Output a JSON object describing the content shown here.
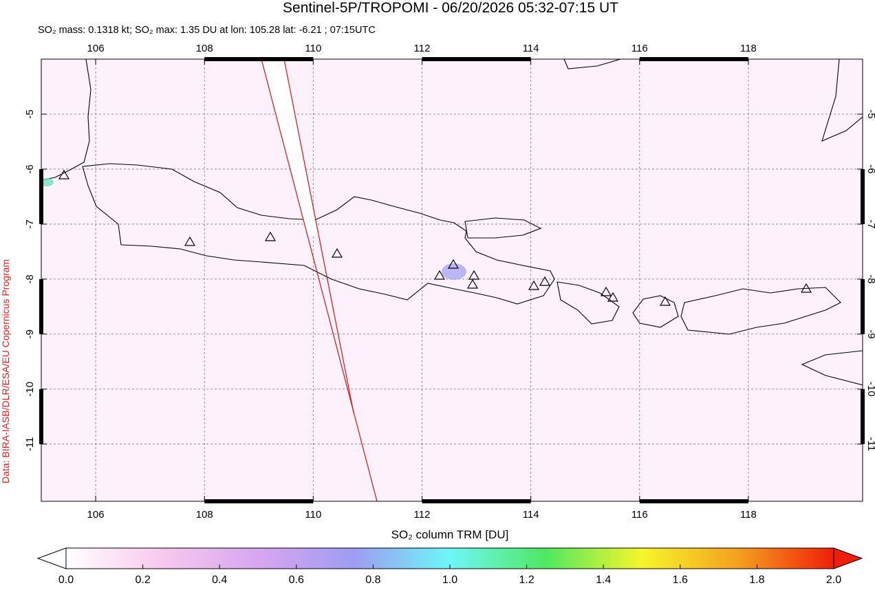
{
  "map": {
    "title": "Sentinel-5P/TROPOMI - 06/20/2026 05:32-07:15 UT",
    "subtitle": "SO₂ mass: 0.1318 kt; SO₂ max: 1.35 DU at lon: 105.28 lat: -6.21 ; 07:15UTC",
    "credit": "Data: BIRA-IASB/DLR/ESA/EU Copernicus Program",
    "xlim": [
      105,
      120.1
    ],
    "ylim": [
      -12.04,
      -4
    ],
    "xticks": [
      106,
      108,
      110,
      112,
      114,
      116,
      118
    ],
    "yticks": [
      -5,
      -6,
      -7,
      -8,
      -9,
      -10,
      -11
    ],
    "grid": true
  },
  "colorbar": {
    "label": "SO₂ column TRM [DU]",
    "lim": [
      0,
      2
    ],
    "colors": [
      "#ffffff",
      "#f8c8ee",
      "#d7a6f0",
      "#9e9cf2",
      "#6ef6f8",
      "#4fe860",
      "#f6f62a",
      "#f5a020",
      "#f01e0a"
    ],
    "ticks": [
      {
        "value": 0,
        "label": "0.0"
      },
      0.2,
      0.4,
      0.6,
      0.8,
      {
        "value": 1,
        "label": "1.0"
      },
      1.2,
      1.4,
      1.6,
      1.8,
      {
        "value": 2,
        "label": "2.0"
      }
    ]
  }
}
